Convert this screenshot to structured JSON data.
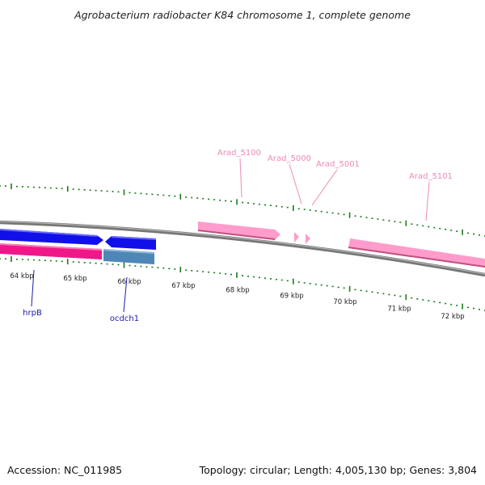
{
  "title": "Agrobacterium radiobacter K84 chromosome 1, complete genome",
  "footer": {
    "accession": "Accession: NC_011985",
    "summary": "Topology: circular; Length: 4,005,130 bp; Genes: 3,804"
  },
  "scale_labels": [
    "64 kbp",
    "65 kbp",
    "66 kbp",
    "67 kbp",
    "68 kbp",
    "69 kbp",
    "70 kbp",
    "71 kbp",
    "72 kbp"
  ],
  "genes_outer": [
    {
      "label": "Arad_5100"
    },
    {
      "label": "Arad_5000"
    },
    {
      "label": "Arad_5001"
    },
    {
      "label": "Arad_5101"
    }
  ],
  "genes_inner": [
    {
      "label": "hrpB"
    },
    {
      "label": "ocdch1"
    }
  ],
  "colors": {
    "blue_gene": "#1010e8",
    "pink_gene": "#ff9ccc",
    "magenta_gene": "#f01888",
    "steel_gene": "#4f86b8",
    "tick": "#1a7a1a",
    "backbone": "#7a7a7a"
  }
}
